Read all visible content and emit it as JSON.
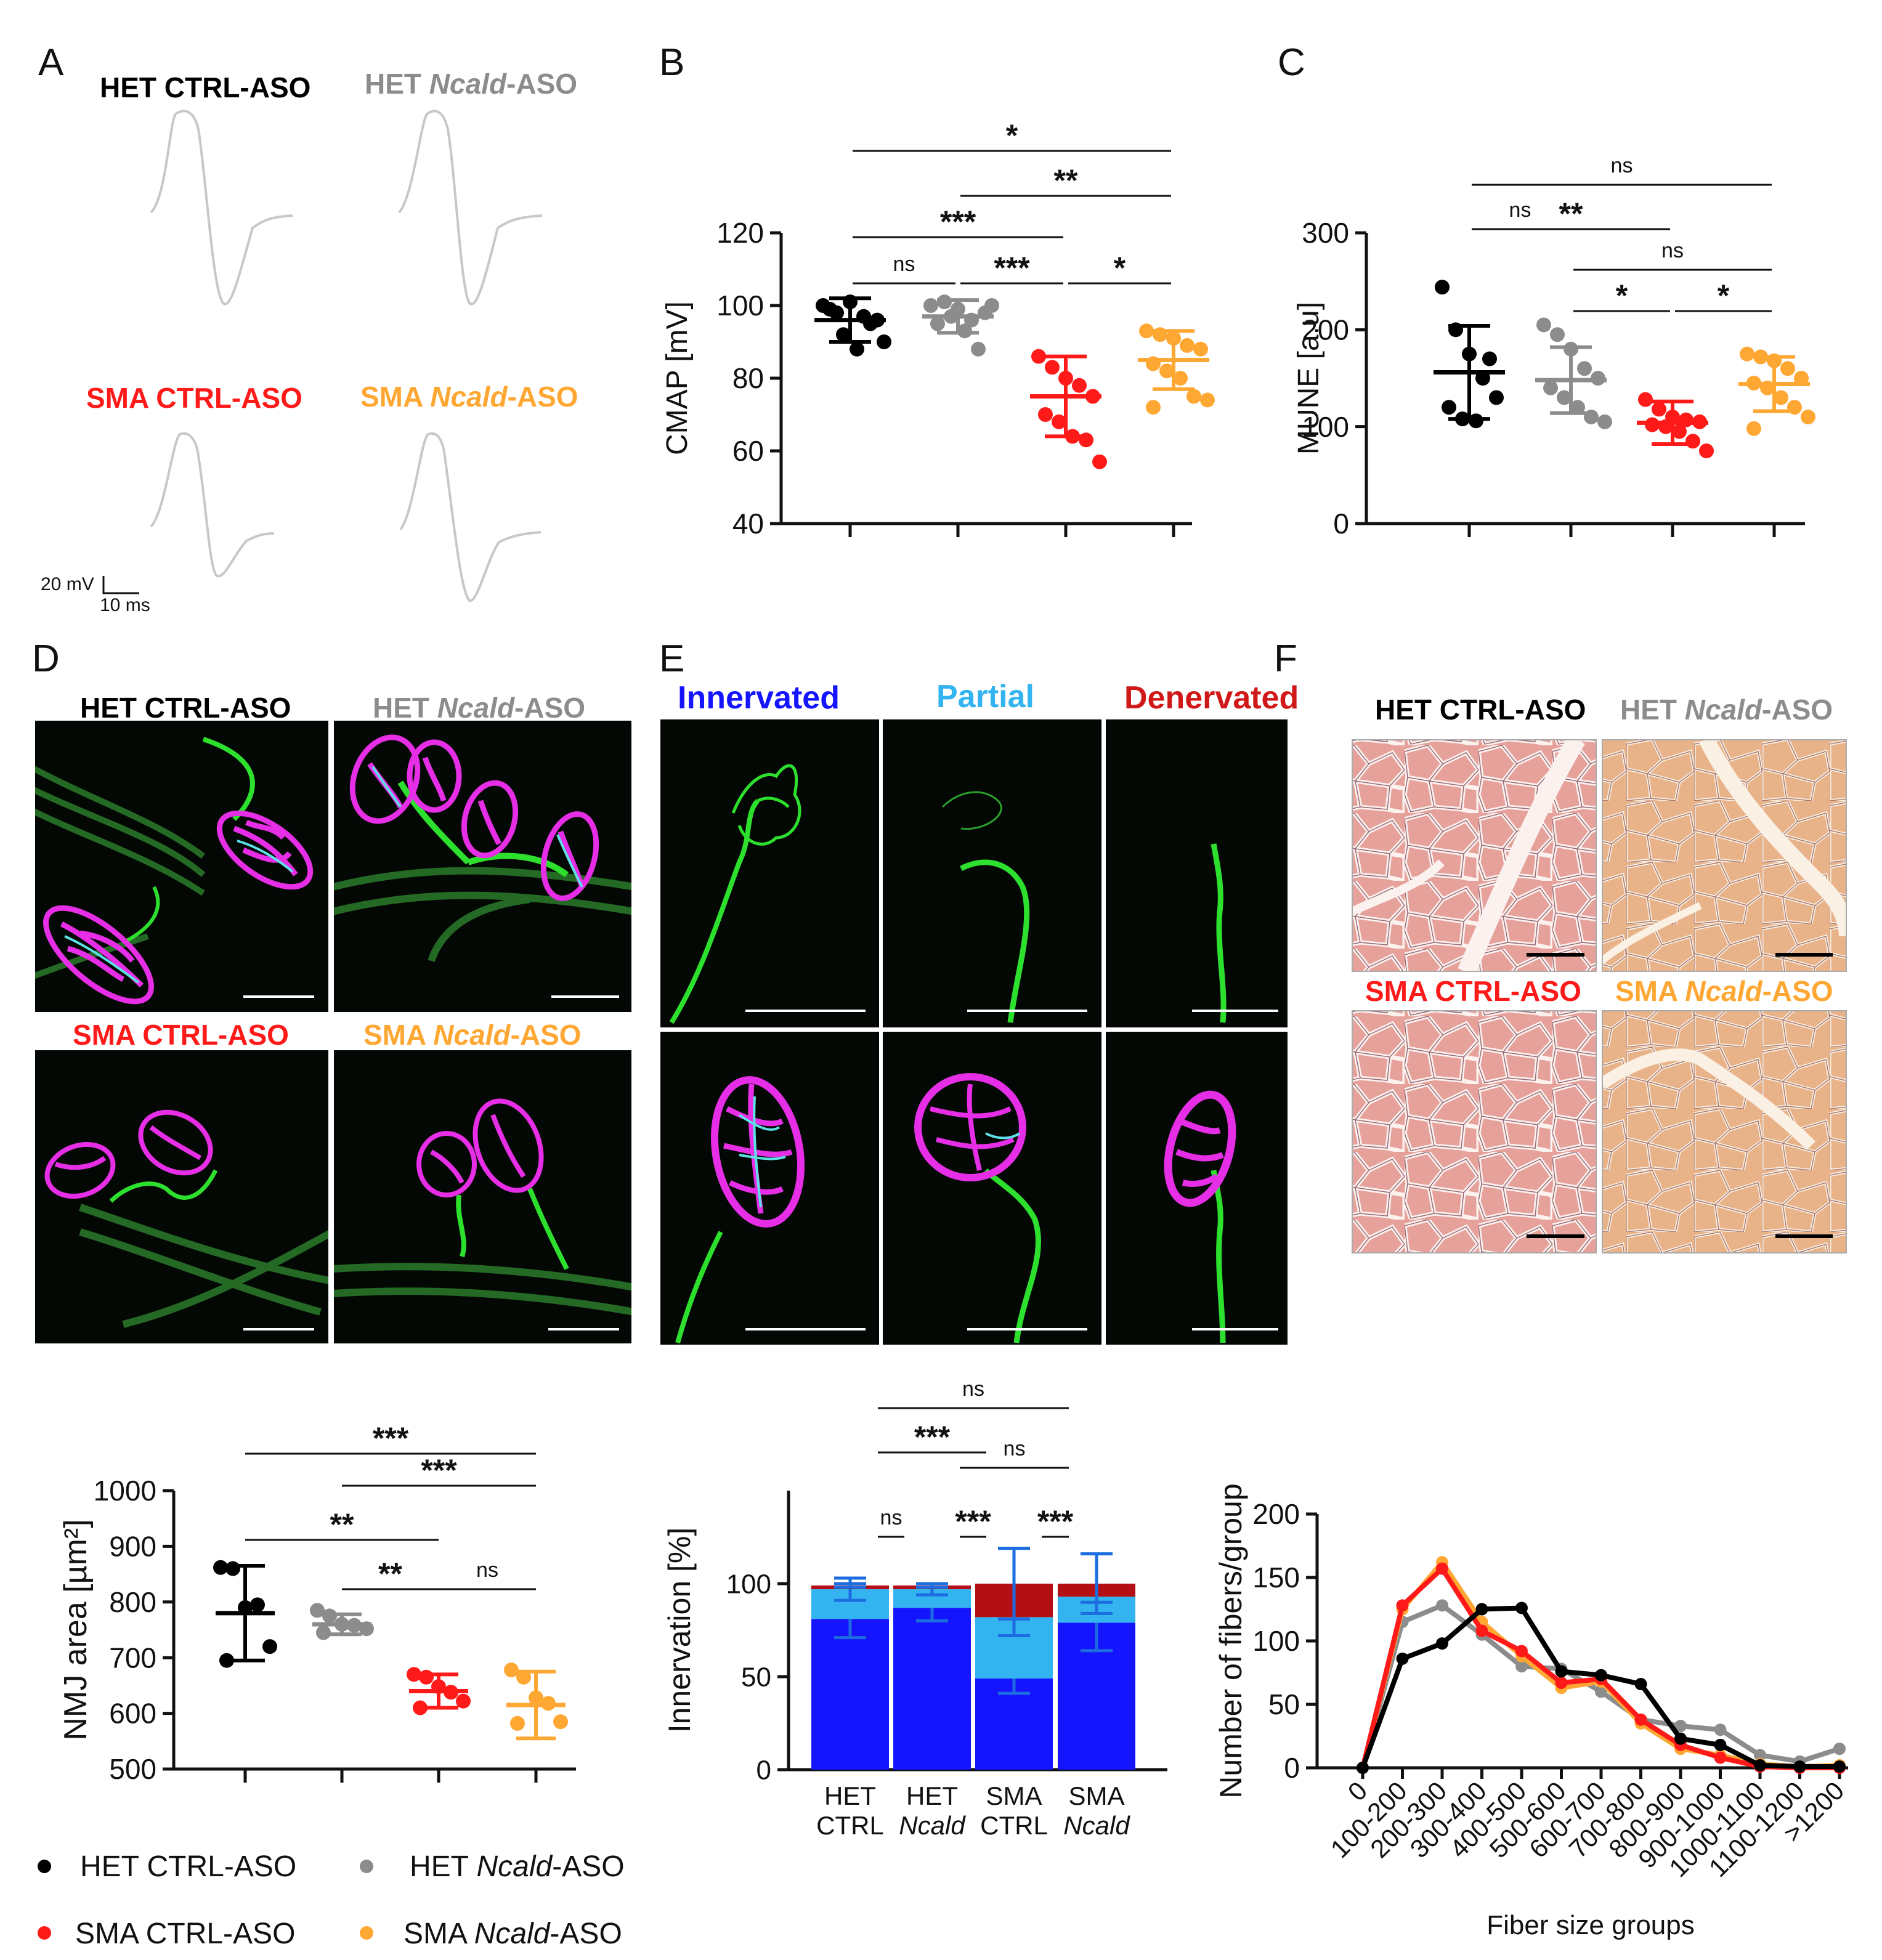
{
  "colors": {
    "het_ctrl": "#000000",
    "het_ncald": "#8c8c8c",
    "sma_ctrl": "#ff1a1a",
    "sma_ncald": "#ffa733",
    "innervated": "#1414ff",
    "partial": "#33b4f0",
    "denervated": "#b40f14",
    "nmj_green": "#2de02d",
    "nmj_magenta": "#e52ee5",
    "nmj_cyan": "#5de1e6",
    "he_pink": "#e6a29a",
    "he_peach": "#e9b38a"
  },
  "panel_letters": {
    "a": "A",
    "b": "B",
    "c": "C",
    "d": "D",
    "e": "E",
    "f": "F"
  },
  "panel_a": {
    "labels": {
      "het_ctrl": "HET CTRL-ASO",
      "het_ncald_pre": "HET ",
      "het_ncald_gene": "Ncald",
      "het_ncald_post": "-ASO",
      "sma_ctrl": "SMA CTRL-ASO",
      "sma_ncald_pre": "SMA ",
      "sma_ncald_gene": "Ncald",
      "sma_ncald_post": "-ASO"
    },
    "scale_v": "20 mV",
    "scale_t": "10 ms"
  },
  "group_labels": {
    "het_ctrl": "HET CTRL-ASO",
    "het_ncald_pre": "HET ",
    "het_ncald_gene": "Ncald",
    "het_ncald_post": "-ASO",
    "sma_ctrl": "SMA CTRL-ASO",
    "sma_ncald_pre": "SMA ",
    "sma_ncald_gene": "Ncald",
    "sma_ncald_post": "-ASO"
  },
  "panel_e_headers": {
    "innervated": "Innervated",
    "partial": "Partial",
    "denervated": "Denervated"
  },
  "chart_data": [
    {
      "id": "cmap",
      "type": "scatter",
      "ylabel": "CMAP [mV]",
      "ylim": [
        40,
        120
      ],
      "yticks": [
        "40",
        "60",
        "80",
        "100",
        "120"
      ],
      "groups": [
        {
          "name": "HET CTRL-ASO",
          "color": "#000000",
          "mean": 96,
          "sd": 6,
          "values": [
            100,
            98,
            101,
            97,
            96,
            99,
            92,
            88,
            95,
            90
          ]
        },
        {
          "name": "HET Ncald-ASO",
          "color": "#8c8c8c",
          "mean": 97,
          "sd": 4.5,
          "values": [
            100,
            101,
            99,
            96,
            98,
            95,
            97,
            93,
            88,
            100
          ]
        },
        {
          "name": "SMA CTRL-ASO",
          "color": "#ff1a1a",
          "mean": 75,
          "sd": 11,
          "values": [
            86,
            83,
            80,
            78,
            75,
            70,
            68,
            64,
            63,
            57
          ]
        },
        {
          "name": "SMA Ncald-ASO",
          "color": "#ffa733",
          "mean": 85,
          "sd": 8,
          "values": [
            93,
            92,
            91,
            89,
            88,
            84,
            82,
            80,
            75,
            74,
            72
          ]
        }
      ],
      "significance": [
        {
          "from": 0,
          "to": 3,
          "label": "*"
        },
        {
          "from": 1,
          "to": 3,
          "label": "**"
        },
        {
          "from": 0,
          "to": 2,
          "label": "***"
        },
        {
          "from": 0,
          "to": 1,
          "label": "ns"
        },
        {
          "from": 1,
          "to": 2,
          "label": "***"
        },
        {
          "from": 2,
          "to": 3,
          "label": "*"
        }
      ]
    },
    {
      "id": "mune",
      "type": "scatter",
      "ylabel": "MUNE [a.u]",
      "ylim": [
        0,
        300
      ],
      "yticks": [
        "0",
        "100",
        "200",
        "300"
      ],
      "groups": [
        {
          "name": "HET CTRL-ASO",
          "color": "#000000",
          "mean": 156,
          "sd": 48,
          "values": [
            244,
            200,
            175,
            150,
            130,
            120,
            108,
            106,
            170
          ]
        },
        {
          "name": "HET Ncald-ASO",
          "color": "#8c8c8c",
          "mean": 148,
          "sd": 34,
          "values": [
            205,
            195,
            180,
            160,
            150,
            140,
            130,
            120,
            110,
            105
          ]
        },
        {
          "name": "SMA CTRL-ASO",
          "color": "#ff1a1a",
          "mean": 104,
          "sd": 22,
          "values": [
            128,
            118,
            110,
            107,
            105,
            102,
            100,
            95,
            85,
            75
          ]
        },
        {
          "name": "SMA Ncald-ASO",
          "color": "#ffa733",
          "mean": 144,
          "sd": 28,
          "values": [
            175,
            172,
            168,
            160,
            150,
            145,
            140,
            130,
            120,
            110,
            98
          ]
        }
      ],
      "significance": [
        {
          "from": 0,
          "to": 3,
          "label": "ns"
        },
        {
          "from": 0,
          "to": 2,
          "label": "**"
        },
        {
          "from": 0,
          "to": 1,
          "label": "ns"
        },
        {
          "from": 1,
          "to": 3,
          "label": "ns"
        },
        {
          "from": 1,
          "to": 2,
          "label": "*"
        },
        {
          "from": 2,
          "to": 3,
          "label": "*"
        }
      ]
    },
    {
      "id": "nmj_area",
      "type": "scatter",
      "ylabel": "NMJ area [µm²]",
      "ylim": [
        500,
        1000
      ],
      "yticks": [
        "500",
        "600",
        "700",
        "800",
        "900",
        "1000"
      ],
      "groups": [
        {
          "name": "HET CTRL-ASO",
          "color": "#000000",
          "mean": 780,
          "sd": 85,
          "values": [
            862,
            860,
            790,
            795,
            720,
            695
          ]
        },
        {
          "name": "HET Ncald-ASO",
          "color": "#8c8c8c",
          "mean": 760,
          "sd": 18,
          "values": [
            785,
            775,
            760,
            758,
            752,
            745
          ]
        },
        {
          "name": "SMA CTRL-ASO",
          "color": "#ff1a1a",
          "mean": 640,
          "sd": 30,
          "values": [
            670,
            665,
            648,
            638,
            622,
            610
          ]
        },
        {
          "name": "SMA Ncald-ASO",
          "color": "#ffa733",
          "mean": 615,
          "sd": 60,
          "values": [
            678,
            665,
            628,
            618,
            585,
            582
          ]
        }
      ],
      "significance": [
        {
          "from": 0,
          "to": 3,
          "label": "***"
        },
        {
          "from": 1,
          "to": 3,
          "label": "***"
        },
        {
          "from": 0,
          "to": 2,
          "label": "**"
        },
        {
          "from": 1,
          "to": 2,
          "label": "**"
        },
        {
          "from": 2,
          "to": 3,
          "label": "ns"
        }
      ]
    },
    {
      "id": "innervation",
      "type": "bar",
      "stacked": true,
      "ylabel": "Innervation [%]",
      "ylim": [
        0,
        150
      ],
      "yticks": [
        "0",
        "50",
        "100"
      ],
      "categories": [
        {
          "l1": "HET",
          "l2": "CTRL",
          "l2_italic": false
        },
        {
          "l1": "HET",
          "l2": "Ncald",
          "l2_italic": true
        },
        {
          "l1": "SMA",
          "l2": "CTRL",
          "l2_italic": false
        },
        {
          "l1": "SMA",
          "l2": "Ncald",
          "l2_italic": true
        }
      ],
      "series": [
        {
          "values": [
            81,
            87,
            49,
            79
          ],
          "errors": [
            10,
            7,
            8,
            15
          ],
          "color": "#1414ff"
        },
        {
          "values": [
            16,
            10,
            33,
            14
          ],
          "errors": [
            6,
            3,
            10,
            3
          ],
          "color": "#33b4f0"
        },
        {
          "values": [
            2,
            2,
            18,
            7
          ],
          "errors": [
            1,
            1,
            19,
            16
          ],
          "color": "#b40f14"
        }
      ],
      "significance": [
        {
          "from": 0,
          "to": 3,
          "label": "ns"
        },
        {
          "from": 0,
          "to": 2,
          "label": "***"
        },
        {
          "from": 1,
          "to": 3,
          "label": "ns"
        },
        {
          "from": 0,
          "to": 1,
          "label": "ns"
        },
        {
          "from": 1,
          "to": 2,
          "label": "***"
        },
        {
          "from": 2,
          "to": 3,
          "label": "***"
        }
      ]
    },
    {
      "id": "fiber_size",
      "type": "line",
      "ylabel": "Number of fibers/group",
      "xlabel": "Fiber size groups",
      "ylim": [
        0,
        200
      ],
      "yticks": [
        "0",
        "50",
        "100",
        "150",
        "200"
      ],
      "categories": [
        "0",
        "100-200",
        "200-300",
        "300-400",
        "400-500",
        "500-600",
        "600-700",
        "700-800",
        "800-900",
        "900-1000",
        "1000-1100",
        "1100-1200",
        ">1200"
      ],
      "series": [
        {
          "name": "HET Ncald-ASO",
          "color": "#8c8c8c",
          "values": [
            0,
            115,
            128,
            105,
            80,
            78,
            60,
            38,
            33,
            30,
            10,
            5,
            15
          ]
        },
        {
          "name": "SMA Ncald-ASO",
          "color": "#ffa733",
          "values": [
            0,
            125,
            162,
            115,
            88,
            63,
            68,
            35,
            15,
            10,
            3,
            1,
            2
          ]
        },
        {
          "name": "SMA CTRL-ASO",
          "color": "#ff1a1a",
          "values": [
            0,
            128,
            157,
            108,
            92,
            67,
            70,
            38,
            18,
            8,
            1,
            0,
            0
          ]
        },
        {
          "name": "HET CTRL-ASO",
          "color": "#000000",
          "values": [
            0,
            86,
            98,
            125,
            126,
            76,
            73,
            66,
            23,
            18,
            2,
            1,
            1
          ]
        }
      ]
    }
  ],
  "legend": [
    {
      "pre": "HET CTRL-ASO",
      "gene": "",
      "post": "",
      "color": "#000000"
    },
    {
      "pre": "HET ",
      "gene": "Ncald",
      "post": "-ASO",
      "color": "#8c8c8c"
    },
    {
      "pre": "SMA CTRL-ASO",
      "gene": "",
      "post": "",
      "color": "#ff1a1a"
    },
    {
      "pre": "SMA ",
      "gene": "Ncald",
      "post": "-ASO",
      "color": "#ffa733"
    }
  ]
}
